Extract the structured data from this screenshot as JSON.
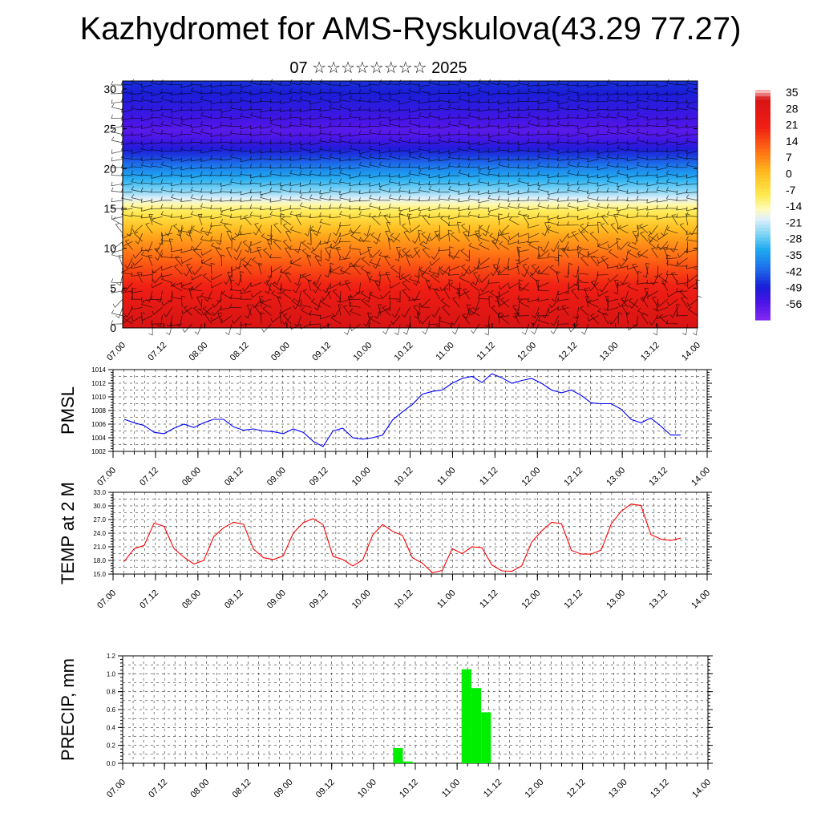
{
  "header": {
    "title": "Kazhydromet for AMS-Ryskulova(43.29 77.27)",
    "subtitle": "07 ☆☆☆☆☆☆☆☆ 2025"
  },
  "chart_data": [
    {
      "type": "heatmap",
      "title": "",
      "x_tick_labels": [
        "07.00",
        "07.12",
        "08.00",
        "08.12",
        "09.00",
        "09.12",
        "10.00",
        "10.12",
        "11.00",
        "11.12",
        "12.00",
        "12.12",
        "13.00",
        "13.12",
        "14.00"
      ],
      "y_ticks": [
        0,
        5,
        10,
        15,
        20,
        25,
        30
      ],
      "ylim": [
        0,
        31
      ],
      "colorbar_labels": [
        "35",
        "28",
        "21",
        "14",
        "7",
        "0",
        "-7",
        "-14",
        "-21",
        "-28",
        "-35",
        "-42",
        "-49",
        "-56"
      ],
      "colorbar_range": [
        -60,
        38
      ],
      "temperature_profile_by_height": [
        {
          "height": 0,
          "value": 34
        },
        {
          "height": 4,
          "value": 25
        },
        {
          "height": 8,
          "value": 15
        },
        {
          "height": 12,
          "value": 4
        },
        {
          "height": 15,
          "value": -9
        },
        {
          "height": 17,
          "value": -22
        },
        {
          "height": 20,
          "value": -35
        },
        {
          "height": 22,
          "value": -45
        },
        {
          "height": 24.5,
          "value": -55
        },
        {
          "height": 27,
          "value": -50
        },
        {
          "height": 31,
          "value": -44
        }
      ],
      "overlay": "wind barbs"
    },
    {
      "type": "line",
      "ylabel": "PMSL",
      "x_tick_labels": [
        "07.00",
        "07.12",
        "08.00",
        "08.12",
        "09.00",
        "09.12",
        "10.00",
        "10.12",
        "11.00",
        "11.12",
        "12.00",
        "12.12",
        "13.00",
        "13.12",
        "14.00"
      ],
      "y_tick_labels": [
        "1002",
        "1004",
        "1006",
        "1008",
        "1010",
        "1012",
        "1014"
      ],
      "ylim": [
        1002,
        1014
      ],
      "x_hours": [
        0,
        3,
        6,
        9,
        12,
        15,
        18,
        21,
        24,
        27,
        30,
        33,
        36,
        39,
        42,
        45,
        48,
        51,
        54,
        57,
        60,
        63,
        66,
        69,
        72,
        75,
        78,
        81,
        84,
        87,
        90,
        93,
        96,
        99,
        102,
        105,
        108,
        111,
        114,
        117,
        120,
        123,
        126,
        129,
        132,
        135,
        138,
        141,
        144,
        147,
        150,
        153,
        156,
        159,
        162,
        165,
        168
      ],
      "values": [
        1006.7,
        1006.2,
        1005.8,
        1004.8,
        1004.6,
        1005.4,
        1006.0,
        1005.5,
        1006.2,
        1006.7,
        1006.7,
        1005.6,
        1005.1,
        1005.3,
        1005.0,
        1004.9,
        1004.6,
        1005.3,
        1004.8,
        1003.5,
        1002.7,
        1005.0,
        1005.4,
        1004.0,
        1003.8,
        1004.0,
        1004.4,
        1006.6,
        1007.8,
        1008.9,
        1010.4,
        1010.8,
        1011.0,
        1012.0,
        1012.7,
        1013.0,
        1012.1,
        1013.4,
        1012.8,
        1012.0,
        1012.4,
        1012.7,
        1012.0,
        1011.0,
        1010.6,
        1011.0,
        1010.2,
        1009.1,
        1009.0,
        1009.0,
        1008.2,
        1006.7,
        1006.2,
        1006.9,
        1005.7,
        1004.4,
        1004.4
      ],
      "color": "#0000ff"
    },
    {
      "type": "line",
      "ylabel": "TEMP at 2 M",
      "x_tick_labels": [
        "07.00",
        "07.12",
        "08.00",
        "08.12",
        "09.00",
        "09.12",
        "10.00",
        "10.12",
        "11.00",
        "11.12",
        "12.00",
        "12.12",
        "13.00",
        "13.12",
        "14.00"
      ],
      "y_tick_labels": [
        "15.0",
        "18.0",
        "21.0",
        "24.0",
        "27.0",
        "30.0",
        "33.0"
      ],
      "ylim": [
        15,
        33
      ],
      "x_hours": [
        0,
        3,
        6,
        9,
        12,
        15,
        18,
        21,
        24,
        27,
        30,
        33,
        36,
        39,
        42,
        45,
        48,
        51,
        54,
        57,
        60,
        63,
        66,
        69,
        72,
        75,
        78,
        81,
        84,
        87,
        90,
        93,
        96,
        99,
        102,
        105,
        108,
        111,
        114,
        117,
        120,
        123,
        126,
        129,
        132,
        135,
        138,
        141,
        144,
        147,
        150,
        153,
        156,
        159,
        162,
        165,
        168
      ],
      "values": [
        17.8,
        20.6,
        21.3,
        26.2,
        25.5,
        20.6,
        18.7,
        17.2,
        18.0,
        23.2,
        25.2,
        26.4,
        26.0,
        20.5,
        18.6,
        18.2,
        19.0,
        24.0,
        26.3,
        27.2,
        25.9,
        18.9,
        18.2,
        16.8,
        18.1,
        23.6,
        25.9,
        24.4,
        23.5,
        18.6,
        17.4,
        15.3,
        15.8,
        20.6,
        19.5,
        21.0,
        20.8,
        17.0,
        15.7,
        15.6,
        16.8,
        22.0,
        24.5,
        26.4,
        26.1,
        20.2,
        19.4,
        19.4,
        20.3,
        26.0,
        28.8,
        30.4,
        30.1,
        23.7,
        22.7,
        22.4,
        22.9
      ],
      "color": "#ff0000"
    },
    {
      "type": "bar",
      "ylabel": "PRECIP, mm",
      "x_tick_labels": [
        "07.00",
        "07.12",
        "08.00",
        "08.12",
        "09.00",
        "09.12",
        "10.00",
        "10.12",
        "11.00",
        "11.12",
        "12.00",
        "12.12",
        "13.00",
        "13.12",
        "14.00"
      ],
      "y_tick_labels": [
        "0.0",
        "0.2",
        "0.4",
        "0.6",
        "0.8",
        "1.0",
        "1.2"
      ],
      "ylim": [
        0,
        1.2
      ],
      "bars": [
        {
          "start_hour": 81,
          "value": 0.17
        },
        {
          "start_hour": 84,
          "value": 0.02
        },
        {
          "start_hour": 102,
          "value": 1.05
        },
        {
          "start_hour": 105,
          "value": 0.84
        },
        {
          "start_hour": 108,
          "value": 0.57
        }
      ],
      "color": "#00ee00"
    }
  ]
}
